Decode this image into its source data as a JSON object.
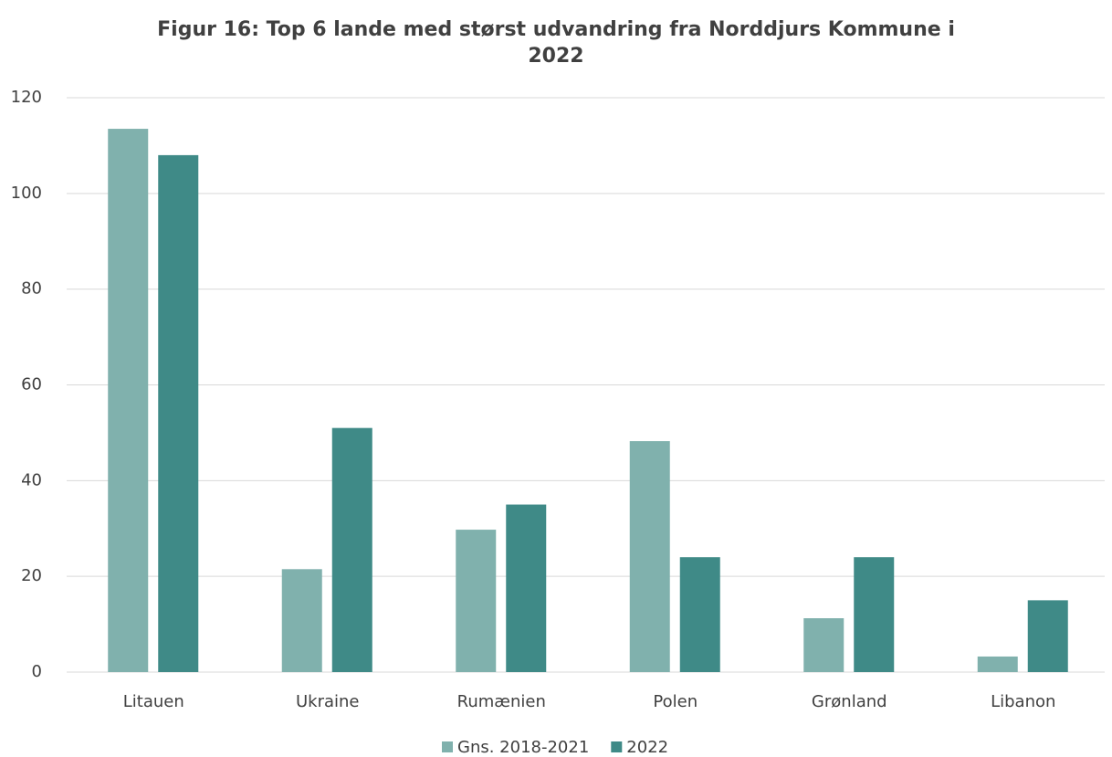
{
  "chart_data": {
    "type": "bar",
    "title": "Figur 16: Top 6 lande med størst udvandring fra Norddjurs Kommune i 2022",
    "categories": [
      "Litauen",
      "Ukraine",
      "Rumænien",
      "Polen",
      "Grønland",
      "Libanon"
    ],
    "series": [
      {
        "name": "Gns. 2018-2021",
        "color": "#80b1ad",
        "values": [
          113.5,
          21.5,
          29.75,
          48.25,
          11.25,
          3.25
        ]
      },
      {
        "name": "2022",
        "color": "#3f8a87",
        "values": [
          108,
          51,
          35,
          24,
          24,
          15
        ]
      }
    ],
    "ylim": [
      0,
      120
    ],
    "yticks": [
      0,
      20,
      40,
      60,
      80,
      100,
      120
    ],
    "grid": true,
    "legend": "bottom"
  }
}
